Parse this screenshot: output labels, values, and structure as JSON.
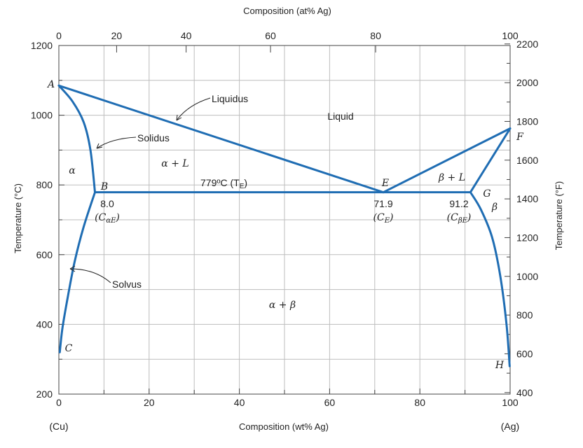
{
  "chart_data": {
    "type": "line",
    "title": "",
    "top_axis_title": "Composition (at% Ag)",
    "bottom_axis_title": "Composition (wt% Ag)",
    "left_axis_title": "Temperature (°C)",
    "right_axis_title": "Temperature (°F)",
    "bottom_end_labels": {
      "left": "(Cu)",
      "right": "(Ag)"
    },
    "xlim": [
      0,
      100
    ],
    "ylim_C": [
      200,
      1200
    ],
    "ylim_F": [
      400,
      2200
    ],
    "bottom_ticks": [
      "0",
      "20",
      "40",
      "60",
      "80",
      "100"
    ],
    "bottom_tick_values": [
      0,
      20,
      40,
      60,
      80,
      100
    ],
    "top_ticks": [
      "0",
      "20",
      "40",
      "60",
      "80",
      "100"
    ],
    "top_tick_wt": [
      0,
      12.8,
      28.2,
      46.9,
      70.2,
      100
    ],
    "left_ticks": [
      "200",
      "400",
      "600",
      "800",
      "1000",
      "1200"
    ],
    "left_tick_values": [
      200,
      400,
      600,
      800,
      1000,
      1200
    ],
    "right_ticks": [
      "400",
      "600",
      "800",
      "1000",
      "1200",
      "1400",
      "1600",
      "1800",
      "2000",
      "2200"
    ],
    "right_tick_values_F": [
      400,
      600,
      800,
      1000,
      1200,
      1400,
      1600,
      1800,
      2000,
      2200
    ],
    "lines": [
      {
        "name": "liquidus-alpha",
        "points": [
          [
            0,
            1085
          ],
          [
            71.9,
            779
          ]
        ]
      },
      {
        "name": "liquidus-beta",
        "points": [
          [
            71.9,
            779
          ],
          [
            100,
            962
          ]
        ]
      },
      {
        "name": "solidus-alpha",
        "points": [
          [
            0,
            1085
          ],
          [
            3,
            1040
          ],
          [
            5.5,
            980
          ],
          [
            7,
            900
          ],
          [
            8.0,
            779
          ]
        ]
      },
      {
        "name": "solidus-beta",
        "points": [
          [
            100,
            962
          ],
          [
            91.2,
            779
          ]
        ]
      },
      {
        "name": "eutectic-isotherm",
        "points": [
          [
            8.0,
            779
          ],
          [
            91.2,
            779
          ]
        ]
      },
      {
        "name": "solvus-alpha",
        "points": [
          [
            8.0,
            779
          ],
          [
            5.5,
            680
          ],
          [
            3.5,
            580
          ],
          [
            2,
            480
          ],
          [
            0.8,
            390
          ],
          [
            0.2,
            320
          ]
        ]
      },
      {
        "name": "solvus-beta",
        "points": [
          [
            91.2,
            779
          ],
          [
            93.5,
            730
          ],
          [
            96,
            650
          ],
          [
            97.8,
            540
          ],
          [
            99.2,
            400
          ],
          [
            99.9,
            280
          ]
        ]
      }
    ],
    "point_labels": [
      {
        "text": "A",
        "x": 0,
        "y": 1085
      },
      {
        "text": "B",
        "x": 8.0,
        "y": 779
      },
      {
        "text": "C",
        "x": 0,
        "y": 320
      },
      {
        "text": "E",
        "x": 71.9,
        "y": 779
      },
      {
        "text": "F",
        "x": 100,
        "y": 962
      },
      {
        "text": "G",
        "x": 91.2,
        "y": 779
      },
      {
        "text": "H",
        "x": 100,
        "y": 280
      }
    ],
    "region_labels": [
      "Liquid",
      "α",
      "α + L",
      "β + L",
      "β",
      "α + β"
    ],
    "curve_labels": [
      "Liquidus",
      "Solidus",
      "Solvus"
    ],
    "eutectic_label": "779ºC (T",
    "eutectic_label_sub": "E",
    "composition_labels": [
      {
        "value": "8.0",
        "symbol": "(C",
        "sub": "αE",
        "close": ")"
      },
      {
        "value": "71.9",
        "symbol": "(C",
        "sub": "E",
        "close": ")"
      },
      {
        "value": "91.2",
        "symbol": "(C",
        "sub": "βE",
        "close": ")"
      }
    ],
    "grid": true,
    "line_color": "#1f6db3",
    "grid_color": "#bdbdbd"
  }
}
